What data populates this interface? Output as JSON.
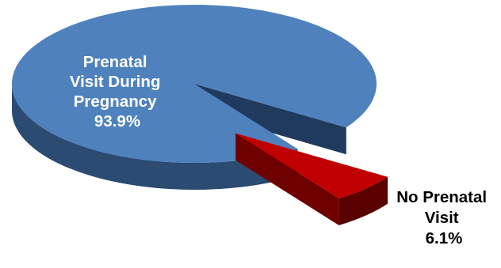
{
  "chart_data": {
    "type": "pie",
    "style": "3d-exploded",
    "slices": [
      {
        "label_lines": [
          "Prenatal",
          "Visit During",
          "Pregnancy",
          "93.9%"
        ],
        "value": 93.9,
        "color": "#4f81bd",
        "side_color": "#2b4b73"
      },
      {
        "label_lines": [
          "No Prenatal",
          "Visit",
          "6.1%"
        ],
        "value": 6.1,
        "color": "#c00000",
        "side_color": "#5a0000",
        "exploded": true
      }
    ]
  }
}
